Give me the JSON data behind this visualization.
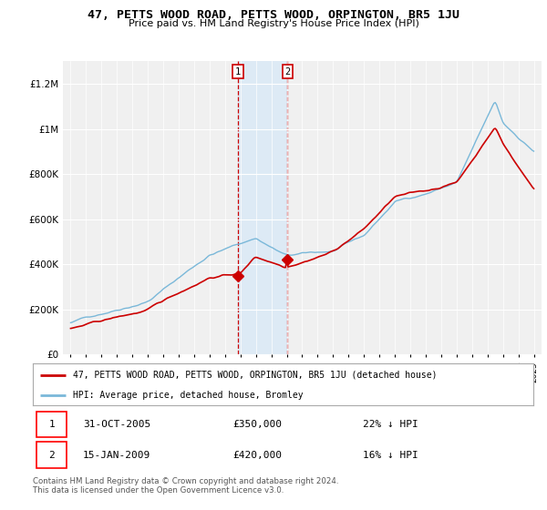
{
  "title": "47, PETTS WOOD ROAD, PETTS WOOD, ORPINGTON, BR5 1JU",
  "subtitle": "Price paid vs. HM Land Registry's House Price Index (HPI)",
  "hpi_label": "HPI: Average price, detached house, Bromley",
  "property_label": "47, PETTS WOOD ROAD, PETTS WOOD, ORPINGTON, BR5 1JU (detached house)",
  "hpi_color": "#7ab8d9",
  "property_color": "#cc0000",
  "shade_color": "#ddeaf5",
  "transaction1_year": 2005.83,
  "transaction1_price": 350000,
  "transaction1_date": "31-OCT-2005",
  "transaction1_pct": "22% ↓ HPI",
  "transaction2_year": 2009.04,
  "transaction2_price": 420000,
  "transaction2_date": "15-JAN-2009",
  "transaction2_pct": "16% ↓ HPI",
  "ylim": [
    0,
    1300000
  ],
  "yticks": [
    0,
    200000,
    400000,
    600000,
    800000,
    1000000,
    1200000
  ],
  "ytick_labels": [
    "£0",
    "£200K",
    "£400K",
    "£600K",
    "£800K",
    "£1M",
    "£1.2M"
  ],
  "copyright_text": "Contains HM Land Registry data © Crown copyright and database right 2024.\nThis data is licensed under the Open Government Licence v3.0.",
  "background_color": "#ffffff",
  "plot_bg_color": "#f0f0f0"
}
